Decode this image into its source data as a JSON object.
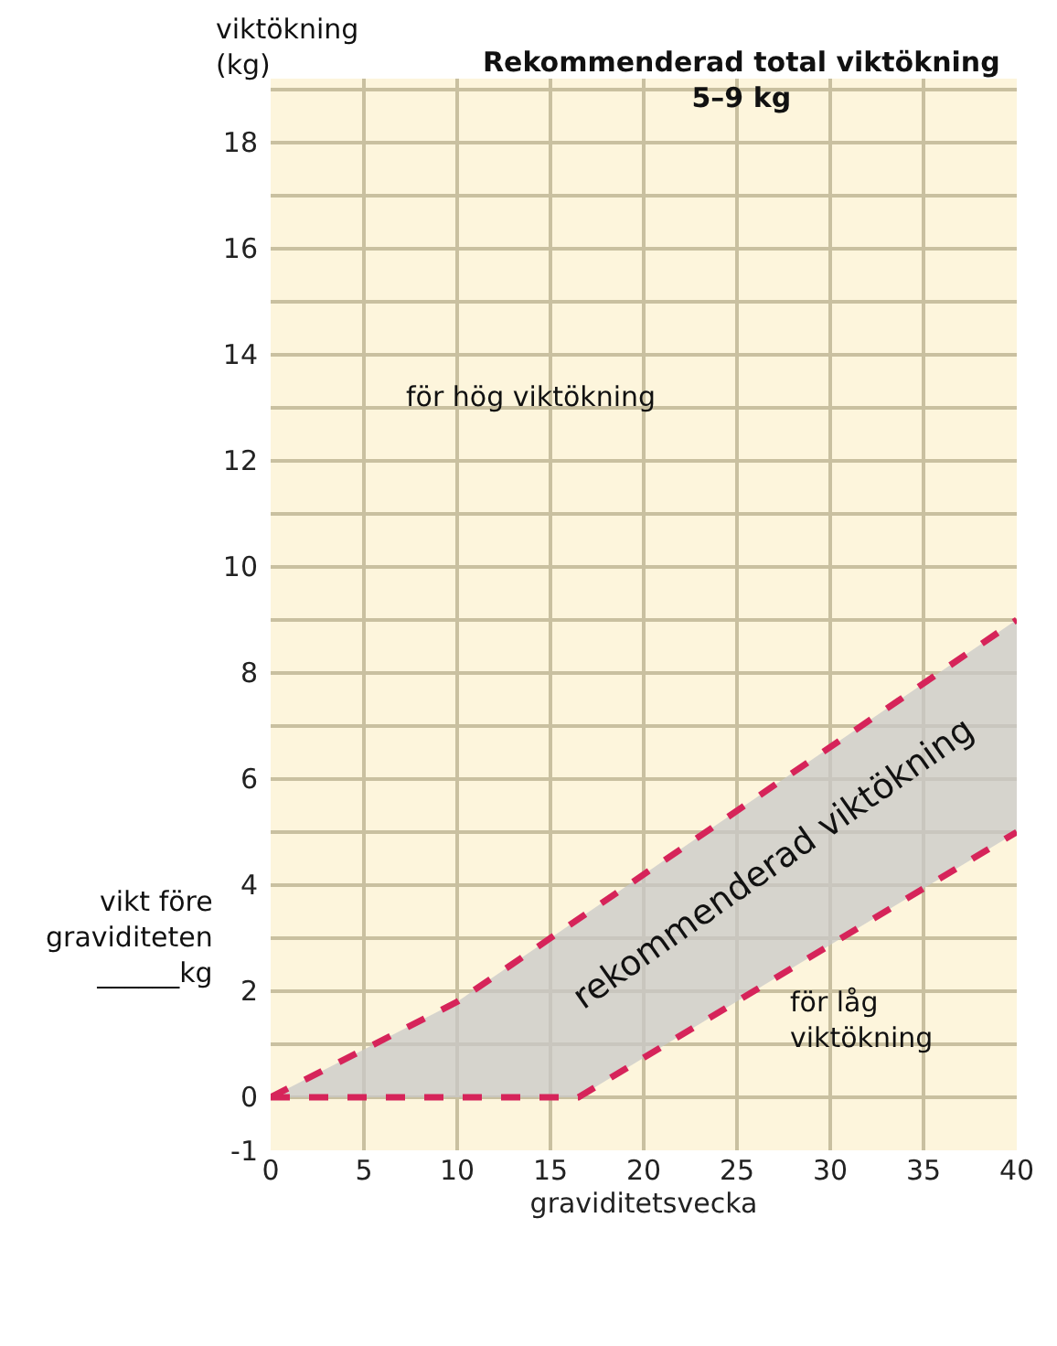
{
  "chart_data": {
    "type": "line",
    "title": "Rekommenderad total viktökning\n5–9 kg",
    "xlabel": "graviditetsvecka",
    "ylabel": "viktökning\n(kg)",
    "series": [
      {
        "color": "#d6245a",
        "x": [
          0,
          16.5,
          40
        ],
        "values": [
          0,
          0,
          5
        ]
      },
      {
        "type": "area",
        "color": "#d6245a",
        "x": [
          0,
          10,
          40
        ],
        "values": [
          0,
          1.8,
          9
        ]
      }
    ],
    "line_style": "dashed",
    "marker": "none",
    "grid": true,
    "xlim": [
      0,
      40
    ],
    "xticks": [
      0,
      5,
      10,
      15,
      20,
      25,
      30,
      35,
      40
    ],
    "ylim": [
      -1,
      19.2
    ],
    "yticks": [
      -1,
      0,
      {
        "value": 1,
        "label": null
      },
      2,
      {
        "value": 3,
        "label": null
      },
      4,
      {
        "value": 5,
        "label": null
      },
      6,
      {
        "value": 7,
        "label": null
      },
      8,
      {
        "value": 9,
        "label": null
      },
      10,
      {
        "value": 11,
        "label": null
      },
      12,
      {
        "value": 13,
        "label": null
      },
      14,
      {
        "value": 15,
        "label": null
      },
      16,
      {
        "value": 17,
        "label": null
      },
      18,
      {
        "value": 19,
        "label": null
      }
    ],
    "annotations": [
      "för hög viktökning",
      "rekommenderad viktökning",
      "för låg\nviktökning",
      "vikt före\ngraviditeten\n______kg"
    ]
  }
}
